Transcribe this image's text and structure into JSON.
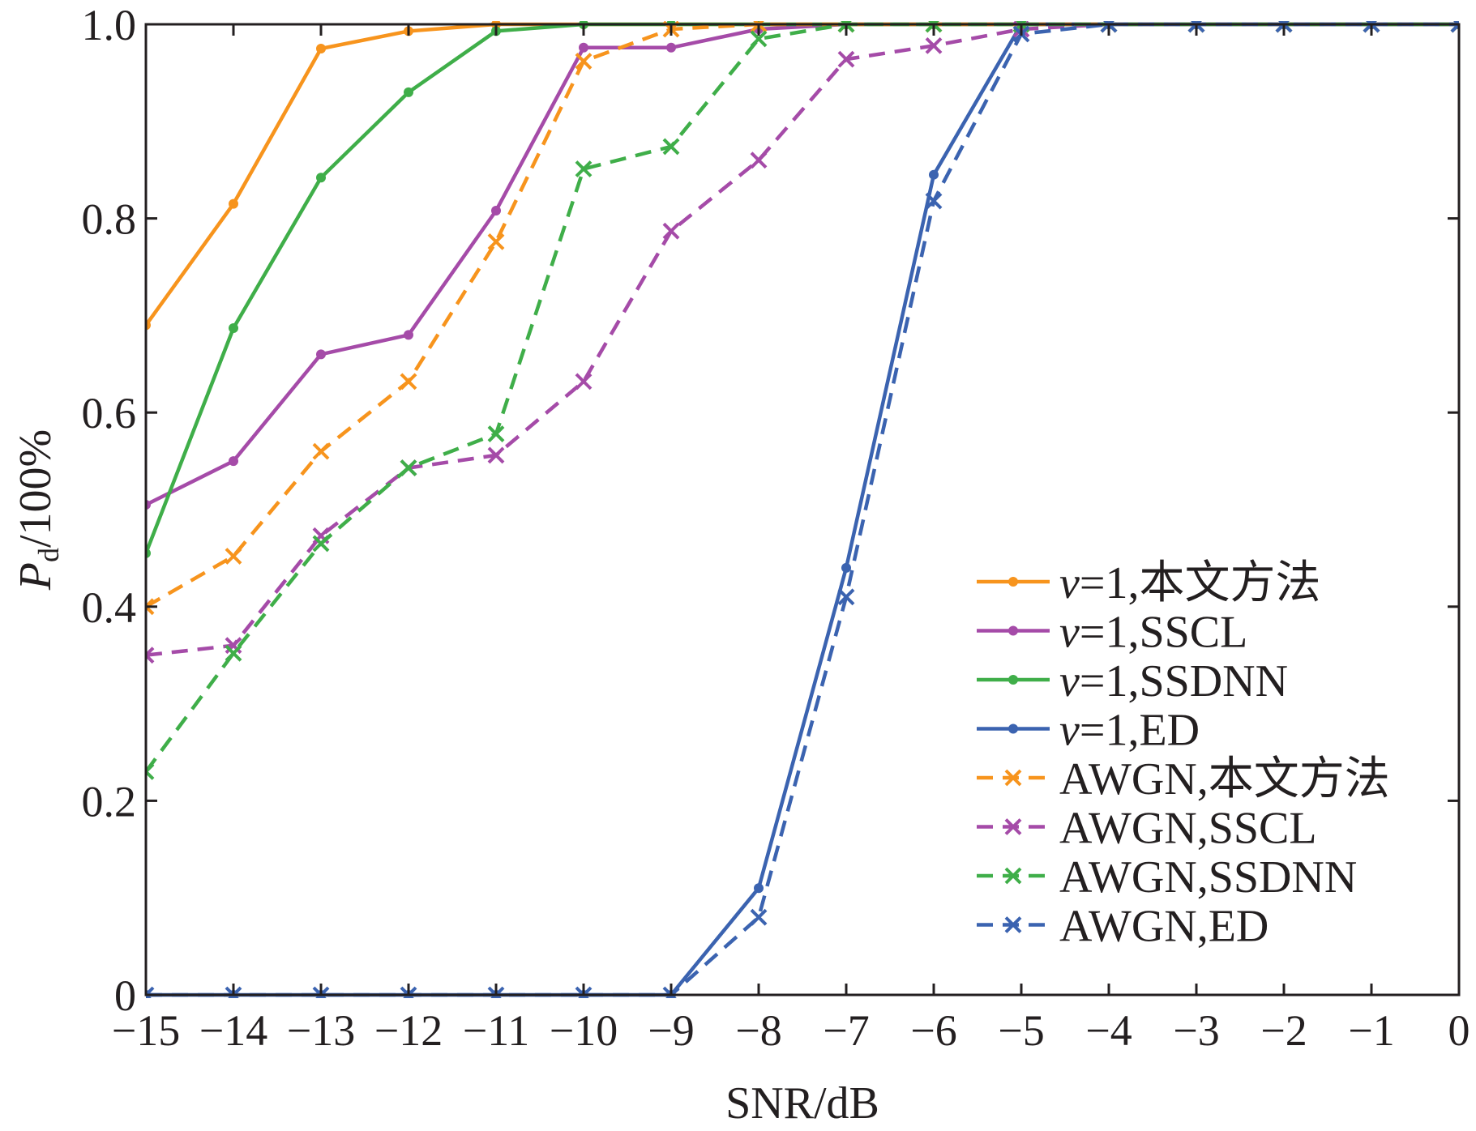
{
  "chart_data": {
    "type": "line",
    "xlabel": "SNR/dB",
    "ylabel": {
      "main": "P",
      "sub": "d",
      "suffix": "/100%"
    },
    "xlim": [
      -15,
      0
    ],
    "ylim": [
      0,
      1
    ],
    "xticks": [
      -15,
      -14,
      -13,
      -12,
      -11,
      -10,
      -9,
      -8,
      -7,
      -6,
      -5,
      -4,
      -3,
      -2,
      -1,
      0
    ],
    "xtick_labels": [
      "−15",
      "−14",
      "−13",
      "−12",
      "−11",
      "−10",
      "−9",
      "−8",
      "−7",
      "−6",
      "−5",
      "−4",
      "−3",
      "−2",
      "−1",
      "0"
    ],
    "yticks": [
      0,
      0.2,
      0.4,
      0.6,
      0.8,
      1.0
    ],
    "ytick_labels": [
      "0",
      "0.2",
      "0.4",
      "0.6",
      "0.8",
      "1.0"
    ],
    "grid": false,
    "legend_position": "lower-right",
    "x": [
      -15,
      -14,
      -13,
      -12,
      -11,
      -10,
      -9,
      -8,
      -7,
      -6,
      -5,
      -4,
      -3,
      -2,
      -1,
      0
    ],
    "series": [
      {
        "name": "v=1,本文方法",
        "name_prefix": "v",
        "name_rest": "=1,本文方法",
        "color": "#f7941d",
        "style": "solid",
        "marker": "dot",
        "values": [
          0.69,
          0.815,
          0.975,
          0.993,
          1.0,
          1.0,
          1.0,
          1.0,
          1.0,
          1.0,
          1.0,
          1.0,
          1.0,
          1.0,
          1.0,
          1.0
        ]
      },
      {
        "name": "v=1,SSCL",
        "name_prefix": "v",
        "name_rest": "=1,SSCL",
        "color": "#a54ba8",
        "style": "solid",
        "marker": "dot",
        "values": [
          0.505,
          0.55,
          0.66,
          0.68,
          0.808,
          0.976,
          0.976,
          0.995,
          1.0,
          1.0,
          1.0,
          1.0,
          1.0,
          1.0,
          1.0,
          1.0
        ]
      },
      {
        "name": "v=1,SSDNN",
        "name_prefix": "v",
        "name_rest": "=1,SSDNN",
        "color": "#3fae49",
        "style": "solid",
        "marker": "dot",
        "values": [
          0.455,
          0.687,
          0.842,
          0.93,
          0.993,
          1.0,
          1.0,
          1.0,
          1.0,
          1.0,
          1.0,
          1.0,
          1.0,
          1.0,
          1.0,
          1.0
        ]
      },
      {
        "name": "v=1,ED",
        "name_prefix": "v",
        "name_rest": "=1,ED",
        "color": "#3b63b0",
        "style": "solid",
        "marker": "dot",
        "values": [
          0,
          0,
          0,
          0,
          0,
          0,
          0,
          0.11,
          0.44,
          0.845,
          1.0,
          1.0,
          1.0,
          1.0,
          1.0,
          1.0
        ]
      },
      {
        "name": "AWGN,本文方法",
        "color": "#f7941d",
        "style": "dashed",
        "marker": "x",
        "values": [
          0.4,
          0.452,
          0.56,
          0.632,
          0.776,
          0.962,
          0.995,
          1.0,
          1.0,
          1.0,
          1.0,
          1.0,
          1.0,
          1.0,
          1.0,
          1.0
        ]
      },
      {
        "name": "AWGN,SSCL",
        "color": "#a54ba8",
        "style": "dashed",
        "marker": "x",
        "values": [
          0.35,
          0.36,
          0.473,
          0.543,
          0.556,
          0.632,
          0.787,
          0.86,
          0.964,
          0.978,
          0.995,
          1.0,
          1.0,
          1.0,
          1.0,
          1.0
        ]
      },
      {
        "name": "AWGN,SSDNN",
        "color": "#3fae49",
        "style": "dashed",
        "marker": "x",
        "values": [
          0.23,
          0.352,
          0.465,
          0.543,
          0.578,
          0.851,
          0.874,
          0.985,
          1.0,
          1.0,
          1.0,
          1.0,
          1.0,
          1.0,
          1.0,
          1.0
        ]
      },
      {
        "name": "AWGN,ED",
        "color": "#3b63b0",
        "style": "dashed",
        "marker": "x",
        "values": [
          0,
          0,
          0,
          0,
          0,
          0,
          0,
          0.08,
          0.41,
          0.818,
          0.99,
          1.0,
          1.0,
          1.0,
          1.0,
          1.0
        ]
      }
    ]
  }
}
